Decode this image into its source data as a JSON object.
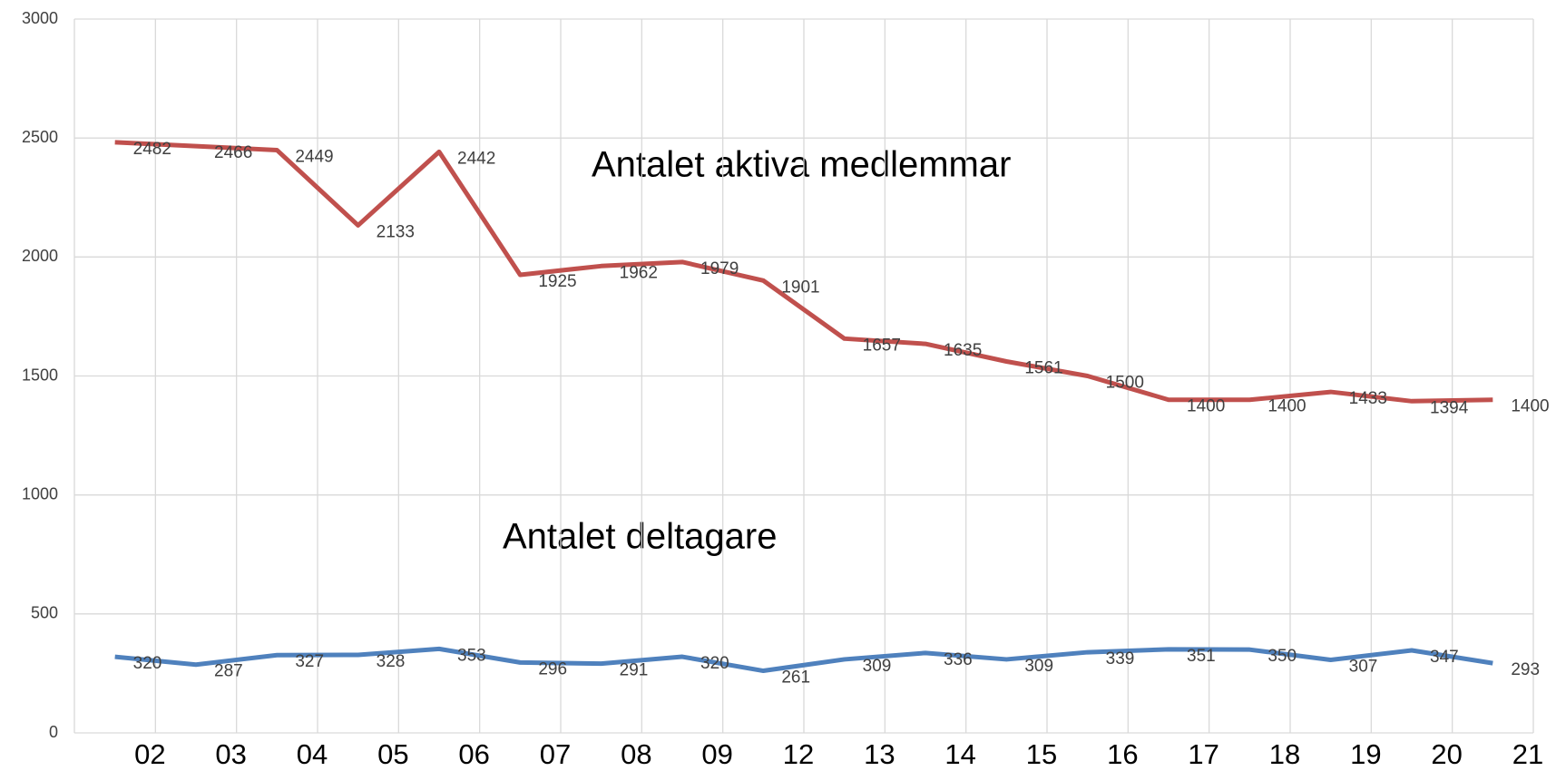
{
  "chart_data": {
    "type": "line",
    "categories": [
      "02",
      "03",
      "04",
      "05",
      "06",
      "07",
      "08",
      "09",
      "12",
      "13",
      "14",
      "15",
      "16",
      "17",
      "18",
      "19",
      "20",
      "21"
    ],
    "series": [
      {
        "color": "#c0504d",
        "values": [
          2482,
          2466,
          2449,
          2133,
          2442,
          1925,
          1962,
          1979,
          1901,
          1657,
          1635,
          1561,
          1500,
          1400,
          1400,
          1433,
          1394,
          1400
        ]
      },
      {
        "color": "#4f81bd",
        "values": [
          320,
          287,
          327,
          328,
          353,
          296,
          291,
          320,
          261,
          309,
          336,
          309,
          339,
          351,
          350,
          307,
          347,
          293
        ]
      }
    ],
    "annotations": [
      "Antalet aktiva medlemmar",
      "Antalet deltagare"
    ],
    "ylim": [
      0,
      3000
    ],
    "yticks": [
      0,
      500,
      1000,
      1500,
      2000,
      2500,
      3000
    ],
    "grid": true
  }
}
